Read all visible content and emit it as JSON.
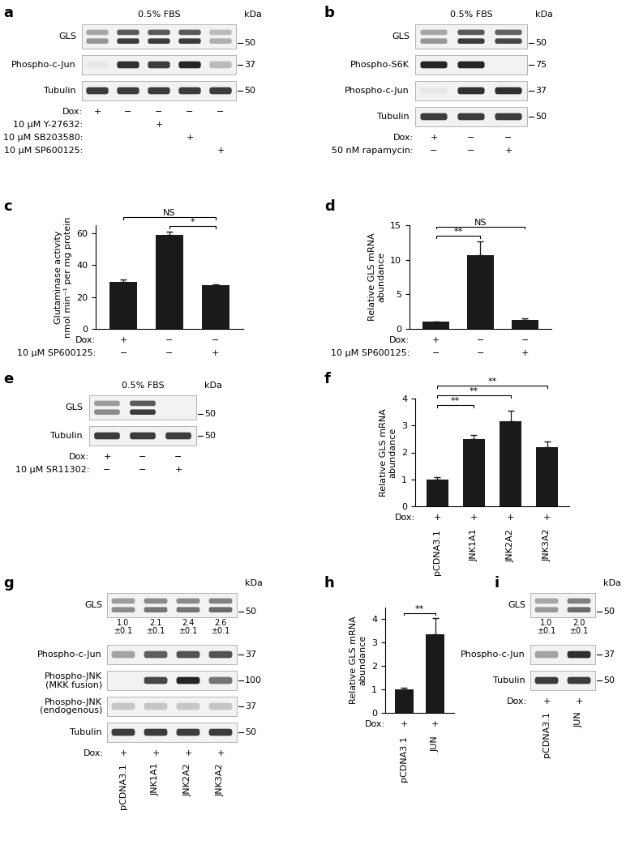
{
  "blots": [
    {
      "panel": "a",
      "header": "0.5% FBS",
      "kda_header": "kDa",
      "rows": [
        {
          "name": "GLS",
          "kda": 50,
          "doublet": true,
          "bands": [
            0.45,
            0.85,
            0.85,
            0.85,
            0.35
          ]
        },
        {
          "name": "Phospho-c-Jun",
          "kda": 37,
          "doublet": false,
          "bands": [
            0.1,
            0.9,
            0.85,
            0.95,
            0.3
          ]
        },
        {
          "name": "Tubulin",
          "kda": 50,
          "doublet": false,
          "bands": [
            0.85,
            0.85,
            0.85,
            0.85,
            0.85
          ]
        }
      ],
      "conditions": [
        {
          "label": "Dox:",
          "values": [
            "+",
            "−",
            "−",
            "−",
            "−"
          ]
        },
        {
          "label": "10 μM Y-27632:",
          "values": [
            null,
            null,
            "+",
            null,
            null
          ]
        },
        {
          "label": "10 μM SB203580:",
          "values": [
            null,
            null,
            null,
            "+",
            null
          ]
        },
        {
          "label": "10 μM SP600125:",
          "values": [
            null,
            null,
            null,
            null,
            "+"
          ]
        }
      ]
    },
    {
      "panel": "b",
      "header": "0.5% FBS",
      "kda_header": "kDa",
      "rows": [
        {
          "name": "GLS",
          "kda": 50,
          "doublet": true,
          "bands": [
            0.45,
            0.85,
            0.8
          ]
        },
        {
          "name": "Phospho-S6K",
          "kda": 75,
          "doublet": false,
          "bands": [
            0.95,
            0.95,
            0.0
          ]
        },
        {
          "name": "Phospho-c-Jun",
          "kda": 37,
          "doublet": false,
          "bands": [
            0.1,
            0.9,
            0.9
          ]
        },
        {
          "name": "Tubulin",
          "kda": 50,
          "doublet": false,
          "bands": [
            0.85,
            0.85,
            0.85
          ]
        }
      ],
      "conditions": [
        {
          "label": "Dox:",
          "values": [
            "+",
            "−",
            "−"
          ]
        },
        {
          "label": "50 nM rapamycin:",
          "values": [
            "−",
            "−",
            "+"
          ]
        }
      ]
    },
    {
      "panel": "e",
      "header": "0.5% FBS",
      "kda_header": "kDa",
      "rows": [
        {
          "name": "GLS",
          "kda": 50,
          "doublet": true,
          "bands": [
            0.5,
            0.85,
            0.0
          ]
        },
        {
          "name": "Tubulin",
          "kda": 50,
          "doublet": false,
          "bands": [
            0.85,
            0.85,
            0.85
          ]
        }
      ],
      "conditions": [
        {
          "label": "Dox:",
          "values": [
            "+",
            "−",
            "−"
          ]
        },
        {
          "label": "10 μM SR11302:",
          "values": [
            "−",
            "−",
            "+"
          ]
        }
      ]
    },
    {
      "panel": "g",
      "kda_header": "kDa",
      "rows": [
        {
          "name": "GLS",
          "kda": 50,
          "doublet": true,
          "bands": [
            0.5,
            0.6,
            0.6,
            0.65
          ],
          "quant_labels": [
            "1.0\n±0.1",
            "2.1\n±0.1",
            "2.4\n±0.1",
            "2.6\n±0.1"
          ]
        },
        {
          "name": "Phospho-c-Jun",
          "kda": 37,
          "doublet": false,
          "bands": [
            0.4,
            0.7,
            0.75,
            0.75
          ]
        },
        {
          "name": "Phospho-JNK\n(MKK fusion)",
          "kda": 100,
          "doublet": false,
          "bands": [
            0.0,
            0.8,
            0.95,
            0.6
          ]
        },
        {
          "name": "Phospho-JNK\n(endogenous)",
          "kda": 37,
          "doublet": false,
          "bands": [
            0.25,
            0.25,
            0.25,
            0.25
          ]
        },
        {
          "name": "Tubulin",
          "kda": 50,
          "doublet": false,
          "bands": [
            0.85,
            0.85,
            0.85,
            0.85
          ]
        }
      ],
      "conditions": [
        {
          "label": "Dox:",
          "values": [
            "+",
            "+",
            "+",
            "+"
          ]
        }
      ],
      "lane_labels": [
        "pCDNA3.1",
        "JNK1A1",
        "JNK2A2",
        "JNK3A2"
      ]
    },
    {
      "panel": "i",
      "kda_header": "kDa",
      "rows": [
        {
          "name": "GLS",
          "kda": 50,
          "doublet": true,
          "bands": [
            0.45,
            0.65
          ],
          "quant_labels": [
            "1.0\n±0.1",
            "2.0\n±0.1"
          ]
        },
        {
          "name": "Phospho-c-Jun",
          "kda": 37,
          "doublet": false,
          "bands": [
            0.4,
            0.9
          ]
        },
        {
          "name": "Tubulin",
          "kda": 50,
          "doublet": false,
          "bands": [
            0.85,
            0.85
          ]
        }
      ],
      "conditions": [
        {
          "label": "Dox:",
          "values": [
            "+",
            "+"
          ]
        }
      ],
      "lane_labels": [
        "pCDNA3.1",
        "JUN"
      ]
    }
  ],
  "chart_data": [
    {
      "panel": "c",
      "type": "bar",
      "y_label": "Glutaminase activity\nnmol min⁻¹ per mg protein",
      "categories": [
        null,
        null,
        null
      ],
      "values": [
        29.5,
        59,
        27.5
      ],
      "errors": [
        1.5,
        2,
        0.5
      ],
      "color": "#1a1a1a",
      "ylim": [
        0,
        65
      ],
      "yticks": [
        0,
        20,
        40,
        60
      ],
      "significance": [
        {
          "from": 1,
          "to": 2,
          "label": "*"
        },
        {
          "from": 0,
          "to": 2,
          "label": "NS"
        }
      ],
      "conditions": [
        {
          "label": "Dox:",
          "values": [
            "+",
            "−",
            "−"
          ]
        },
        {
          "label": "10 μM SP600125:",
          "values": [
            "−",
            "−",
            "+"
          ]
        }
      ]
    },
    {
      "panel": "d",
      "type": "bar",
      "y_label": "Relative GLS mRNA\nabundance",
      "categories": [
        null,
        null,
        null
      ],
      "values": [
        1.0,
        10.7,
        1.3
      ],
      "errors": [
        0.1,
        2.0,
        0.2
      ],
      "color": "#1a1a1a",
      "ylim": [
        0,
        15
      ],
      "yticks": [
        0,
        5,
        10,
        15
      ],
      "significance": [
        {
          "from": 0,
          "to": 1,
          "label": "**"
        },
        {
          "from": 0,
          "to": 2,
          "label": "NS"
        }
      ],
      "conditions": [
        {
          "label": "Dox:",
          "values": [
            "+",
            "−",
            "−"
          ]
        },
        {
          "label": "10 μM SP600125:",
          "values": [
            "−",
            "−",
            "+"
          ]
        }
      ]
    },
    {
      "panel": "f",
      "type": "bar",
      "y_label": "Relative GLS mRNA\nabundance",
      "categories": [
        "pCDNA3.1",
        "JNK1A1",
        "JNK2A2",
        "JNK3A2"
      ],
      "values": [
        1.0,
        2.5,
        3.15,
        2.2
      ],
      "errors": [
        0.08,
        0.15,
        0.4,
        0.2
      ],
      "color": "#1a1a1a",
      "ylim": [
        0,
        4
      ],
      "yticks": [
        0,
        1,
        2,
        3,
        4
      ],
      "significance": [
        {
          "from": 0,
          "to": 1,
          "label": "**"
        },
        {
          "from": 0,
          "to": 2,
          "label": "**"
        },
        {
          "from": 0,
          "to": 3,
          "label": "**"
        }
      ],
      "conditions": [
        {
          "label": "Dox:",
          "values": [
            "+",
            "+",
            "+",
            "+"
          ]
        }
      ]
    },
    {
      "panel": "h",
      "type": "bar",
      "y_label": "Relative GLS mRNA\nabundance",
      "categories": [
        "pCDNA3.1",
        "JUN"
      ],
      "values": [
        1.0,
        3.35
      ],
      "errors": [
        0.08,
        0.7
      ],
      "color": "#1a1a1a",
      "ylim": [
        0,
        4.5
      ],
      "yticks": [
        0,
        1,
        2,
        3,
        4
      ],
      "significance": [
        {
          "from": 0,
          "to": 1,
          "label": "**"
        }
      ],
      "conditions": [
        {
          "label": "Dox:",
          "values": [
            "+",
            "+"
          ]
        }
      ]
    }
  ]
}
